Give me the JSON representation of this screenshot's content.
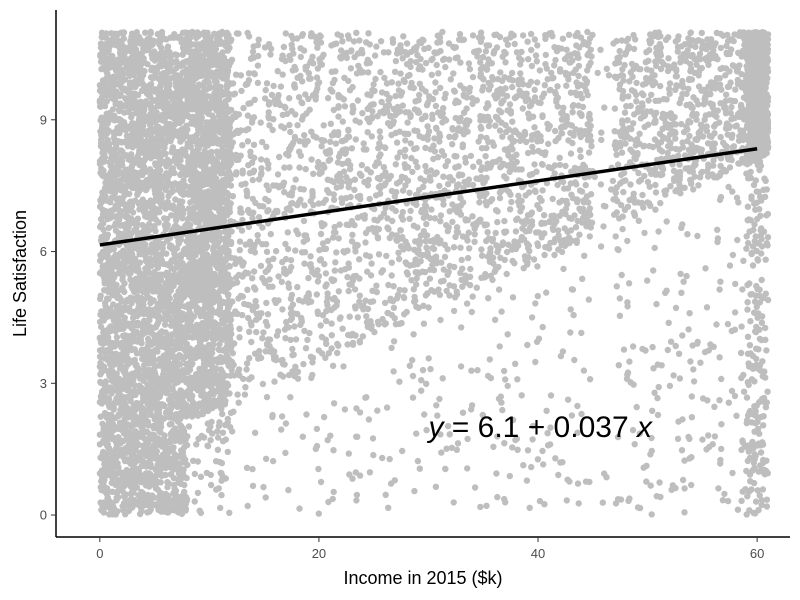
{
  "chart_data": {
    "type": "scatter",
    "title": "",
    "xlabel": "Income in 2015 ($k)",
    "ylabel": "Life Satisfaction",
    "xlim": [
      -4,
      63
    ],
    "ylim": [
      -0.5,
      11.5
    ],
    "x_ticks": [
      0,
      20,
      40,
      60
    ],
    "y_ticks": [
      0,
      3,
      6,
      9
    ],
    "grid": false,
    "legend": "none",
    "point_color": "#bebebe",
    "line_color": "#000000",
    "points_description_range": {
      "x": [
        0,
        61
      ],
      "y": [
        0,
        11
      ]
    },
    "fit_line": {
      "intercept": 6.15,
      "slope": 0.0365,
      "x_start": 0,
      "x_end": 60
    },
    "annotation": {
      "text_y": "y",
      "text_eq": " = 6.1 + 0.037 ",
      "text_x": "x",
      "x": 30,
      "y": 2
    }
  }
}
